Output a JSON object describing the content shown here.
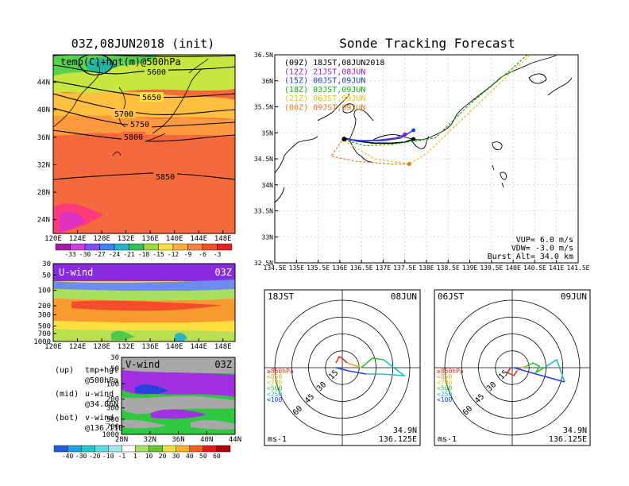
{
  "left_title": "03Z,08JUN2018 (init)",
  "right_title": "Sonde Tracking Forecast",
  "temp_panel": {
    "label": "temp(C)+hgt(m)@500hPa",
    "contours": [
      "5600",
      "5650",
      "5700",
      "5750",
      "5800",
      "5850"
    ],
    "lat_ticks": [
      "44N",
      "40N",
      "36N",
      "32N",
      "28N",
      "24N"
    ],
    "lon_ticks": [
      "120E",
      "124E",
      "128E",
      "132E",
      "136E",
      "140E",
      "144E",
      "148E"
    ],
    "colorbar": [
      "-33",
      "-30",
      "-27",
      "-24",
      "-21",
      "-18",
      "-15",
      "-12",
      "-9",
      "-6",
      "-3"
    ]
  },
  "uwind_panel": {
    "label": "U-wind",
    "time": "03Z",
    "p_ticks": [
      "30",
      "50",
      "100",
      "200",
      "300",
      "500",
      "700",
      "1000"
    ],
    "lon_ticks": [
      "120E",
      "124E",
      "128E",
      "132E",
      "136E",
      "140E",
      "144E",
      "148E"
    ]
  },
  "vwind_panel": {
    "label": "V-wind",
    "time": "03Z",
    "p_ticks": [
      "30",
      "50",
      "100",
      "200",
      "300",
      "500",
      "700",
      "1000"
    ],
    "lat_ticks": [
      "28N",
      "32N",
      "36N",
      "40N",
      "44N"
    ],
    "colorbar": [
      "-40",
      "-30",
      "-20",
      "-10",
      "-1",
      "1",
      "10",
      "20",
      "30",
      "40",
      "50",
      "60"
    ]
  },
  "notes": [
    {
      "k": "(up)",
      "v": "tmp+hgt"
    },
    {
      "k": "",
      "v": "@500hPa"
    },
    {
      "k": "(mid)",
      "v": "u-wind"
    },
    {
      "k": "",
      "v": "@34.86N"
    },
    {
      "k": "(bot)",
      "v": "v-wind"
    },
    {
      "k": "",
      "v": "@136.11E"
    }
  ],
  "track_map": {
    "lat_ticks": [
      "36.5N",
      "36N",
      "35.5N",
      "35N",
      "34.5N",
      "34N",
      "33.5N",
      "33N",
      "32.5N"
    ],
    "lon_ticks": [
      "134.5E",
      "135E",
      "135.5E",
      "136E",
      "136.5E",
      "137E",
      "137.5E",
      "138E",
      "138.5E",
      "139E",
      "139.5E",
      "140E",
      "140.5E",
      "141E",
      "141.5E"
    ],
    "legend": [
      {
        "text": "(09Z)  18JST,08JUN2018",
        "color": "#000000"
      },
      {
        "text": "(12Z)  21JST,08JUN",
        "color": "#a020c0"
      },
      {
        "text": "(15Z)  00JST,09JUN",
        "color": "#2040e0"
      },
      {
        "text": "(18Z)  03JST,09JUN",
        "color": "#10b010"
      },
      {
        "text": "(21Z)  06JST,09JUN",
        "color": "#e8c020"
      },
      {
        "text": "(00Z)  09JST,09JUN",
        "color": "#e87820"
      }
    ],
    "params": [
      "VUP=  6.0 m/s",
      "VDW= -3.0 m/s",
      "Burst Alt= 34.0 km"
    ]
  },
  "hodographs": [
    {
      "time": "18JST",
      "date": "08JUN",
      "lat": "34.9N",
      "lon": "136.125E",
      "unit": "ms-1",
      "rings": [
        "15",
        "30",
        "45",
        "60"
      ],
      "levels": [
        {
          "t": "≥850hPa",
          "c": "#e83020"
        },
        {
          "t": "<850",
          "c": "#e8a020"
        },
        {
          "t": "<700",
          "c": "#c8c820"
        },
        {
          "t": "<500",
          "c": "#30c030"
        },
        {
          "t": "<250",
          "c": "#20c0c0"
        },
        {
          "t": "<100",
          "c": "#2040e0"
        }
      ]
    },
    {
      "time": "06JST",
      "date": "09JUN",
      "lat": "34.9N",
      "lon": "136.125E",
      "unit": "ms-1",
      "rings": [
        "15",
        "30",
        "45",
        "60"
      ],
      "levels": [
        {
          "t": "≥850hPa",
          "c": "#e83020"
        },
        {
          "t": "<850",
          "c": "#e8a020"
        },
        {
          "t": "<700",
          "c": "#c8c820"
        },
        {
          "t": "<500",
          "c": "#30c030"
        },
        {
          "t": "<250",
          "c": "#20c0c0"
        },
        {
          "t": "<100",
          "c": "#2040e0"
        }
      ]
    }
  ],
  "chart_data": [
    {
      "type": "heatmap",
      "title": "03Z,08JUN2018 (init)",
      "subtitle": "temp(C)+hgt(m)@500hPa",
      "xlim": [
        120,
        150
      ],
      "ylim": [
        22,
        48
      ],
      "colorbar": [
        -33,
        -30,
        -27,
        -24,
        -21,
        -18,
        -15,
        -12,
        -9,
        -6,
        -3
      ],
      "contour_labels": [
        5600,
        5650,
        5700,
        5750,
        5800,
        5850
      ]
    },
    {
      "type": "heatmap",
      "title": "U-wind",
      "subtitle": "03Z",
      "xlim": [
        120,
        150
      ],
      "y_ticks": [
        30,
        50,
        100,
        200,
        300,
        500,
        700,
        1000
      ]
    },
    {
      "type": "heatmap",
      "title": "V-wind",
      "subtitle": "03Z",
      "xlim": [
        28,
        44
      ],
      "y_ticks": [
        30,
        50,
        100,
        200,
        300,
        500,
        700,
        1000
      ],
      "colorbar": [
        -40,
        -30,
        -20,
        -10,
        -1,
        1,
        10,
        20,
        30,
        40,
        50,
        60
      ]
    },
    {
      "type": "line",
      "title": "Sonde Tracking Forecast",
      "xlim": [
        134.5,
        141.5
      ],
      "ylim": [
        32.5,
        36.5
      ],
      "series": [
        {
          "name": "(09Z)  18JST,08JUN2018",
          "x": [
            136.1,
            136.4,
            136.8,
            137.2,
            137.5,
            137.7
          ],
          "y": [
            34.9,
            34.84,
            34.8,
            34.8,
            34.82,
            34.88
          ]
        },
        {
          "name": "(12Z)  21JST,08JUN",
          "x": [
            136.1,
            136.5,
            136.9,
            137.3,
            137.5
          ],
          "y": [
            34.88,
            34.84,
            34.86,
            34.9,
            34.97
          ]
        },
        {
          "name": "(15Z)  00JST,09JUN",
          "x": [
            136.1,
            136.5,
            137.0,
            137.4,
            137.7
          ],
          "y": [
            34.88,
            34.85,
            34.85,
            34.9,
            35.05
          ]
        },
        {
          "name": "(18Z)  03JST,09JUN",
          "x": [
            136.1,
            136.6,
            137.2,
            137.8,
            138.2,
            139.0,
            140.0,
            140.9
          ],
          "y": [
            34.86,
            34.75,
            34.78,
            34.85,
            34.9,
            35.55,
            36.25,
            36.95
          ]
        },
        {
          "name": "(21Z)  06JST,09JUN",
          "x": [
            136.1,
            136.8,
            137.6,
            138.0,
            139.0,
            140.0,
            141.0
          ],
          "y": [
            34.85,
            34.5,
            34.4,
            34.6,
            35.4,
            36.2,
            36.95
          ]
        },
        {
          "name": "(00Z)  09JST,09JUN",
          "x": [
            136.05,
            135.8,
            136.4,
            137.2,
            137.6
          ],
          "y": [
            34.85,
            34.55,
            34.45,
            34.4,
            34.4
          ]
        }
      ]
    }
  ]
}
